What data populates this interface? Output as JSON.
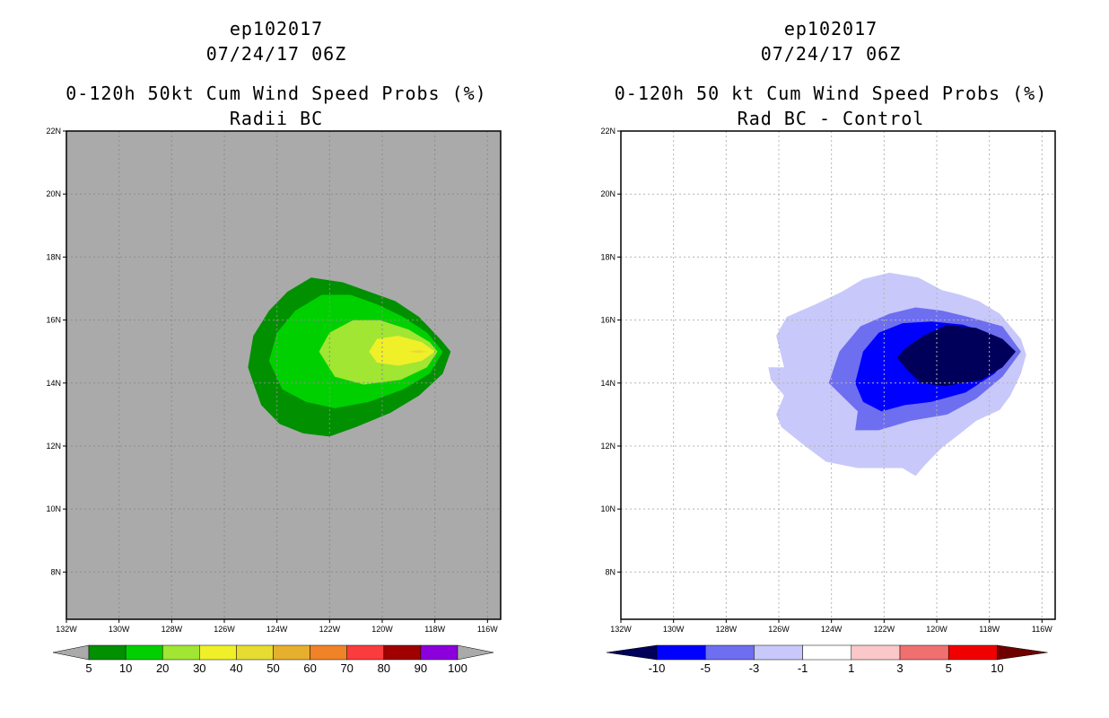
{
  "chart_data": [
    {
      "type": "contour",
      "storm_id": "ep102017",
      "datetime": "07/24/17 06Z",
      "title": "0-120h 50kt Cum Wind Speed Probs (%)",
      "subtitle": "Radii BC",
      "x_ticks": [
        "132W",
        "130W",
        "128W",
        "126W",
        "124W",
        "122W",
        "120W",
        "118W",
        "116W"
      ],
      "y_ticks": [
        "8N",
        "10N",
        "12N",
        "14N",
        "16N",
        "18N",
        "20N",
        "22N"
      ],
      "xlim": [
        -132,
        -115.5
      ],
      "ylim": [
        6.5,
        22
      ],
      "background_color": "#aaaaaa",
      "colorbar_labels": [
        "5",
        "10",
        "20",
        "30",
        "40",
        "50",
        "60",
        "70",
        "80",
        "90",
        "100"
      ],
      "colorbar_colors": [
        "#009000",
        "#00d000",
        "#a0e632",
        "#f0f028",
        "#e6dc32",
        "#e6af2d",
        "#f08228",
        "#fa3c3c",
        "#a00000",
        "#8c00dc"
      ],
      "contours": [
        {
          "level": 5,
          "color": "#009000",
          "points": [
            [
              -125.1,
              14.5
            ],
            [
              -124.9,
              15.5
            ],
            [
              -124.3,
              16.3
            ],
            [
              -123.6,
              16.9
            ],
            [
              -122.7,
              17.35
            ],
            [
              -121.5,
              17.2
            ],
            [
              -120.5,
              16.9
            ],
            [
              -119.5,
              16.6
            ],
            [
              -118.6,
              16.1
            ],
            [
              -117.8,
              15.4
            ],
            [
              -117.4,
              15.0
            ],
            [
              -117.7,
              14.3
            ],
            [
              -118.6,
              13.6
            ],
            [
              -119.7,
              13.05
            ],
            [
              -121.0,
              12.6
            ],
            [
              -122.0,
              12.3
            ],
            [
              -123.0,
              12.4
            ],
            [
              -123.9,
              12.7
            ],
            [
              -124.6,
              13.3
            ],
            [
              -124.9,
              14.0
            ]
          ]
        },
        {
          "level": 10,
          "color": "#00d000",
          "points": [
            [
              -124.3,
              14.7
            ],
            [
              -124.0,
              15.6
            ],
            [
              -123.3,
              16.3
            ],
            [
              -122.3,
              16.8
            ],
            [
              -121.2,
              16.8
            ],
            [
              -120.2,
              16.5
            ],
            [
              -119.2,
              16.1
            ],
            [
              -118.3,
              15.6
            ],
            [
              -117.7,
              15.0
            ],
            [
              -118.2,
              14.3
            ],
            [
              -119.2,
              13.8
            ],
            [
              -120.5,
              13.4
            ],
            [
              -121.8,
              13.2
            ],
            [
              -122.9,
              13.4
            ],
            [
              -123.8,
              13.8
            ]
          ]
        },
        {
          "level": 20,
          "color": "#a0e632",
          "points": [
            [
              -122.4,
              15.0
            ],
            [
              -122.0,
              15.6
            ],
            [
              -121.1,
              16.0
            ],
            [
              -120.1,
              16.0
            ],
            [
              -119.0,
              15.7
            ],
            [
              -118.2,
              15.3
            ],
            [
              -117.9,
              15.0
            ],
            [
              -118.3,
              14.5
            ],
            [
              -119.3,
              14.1
            ],
            [
              -120.7,
              13.95
            ],
            [
              -121.8,
              14.2
            ]
          ]
        },
        {
          "level": 30,
          "color": "#f0f028",
          "points": [
            [
              -120.5,
              15.0
            ],
            [
              -120.2,
              15.4
            ],
            [
              -119.4,
              15.5
            ],
            [
              -118.5,
              15.3
            ],
            [
              -118.0,
              15.0
            ],
            [
              -118.5,
              14.7
            ],
            [
              -119.4,
              14.55
            ],
            [
              -120.2,
              14.65
            ]
          ]
        },
        {
          "level": 40,
          "color": "#e6dc32",
          "points": [
            [
              -119.0,
              15.0
            ],
            [
              -118.6,
              15.05
            ],
            [
              -118.3,
              15.0
            ],
            [
              -118.6,
              14.95
            ]
          ]
        }
      ]
    },
    {
      "type": "contour",
      "storm_id": "ep102017",
      "datetime": "07/24/17 06Z",
      "title": "0-120h 50 kt Cum Wind Speed Probs (%)",
      "subtitle": "Rad BC - Control",
      "x_ticks": [
        "132W",
        "130W",
        "128W",
        "126W",
        "124W",
        "122W",
        "120W",
        "118W",
        "116W"
      ],
      "y_ticks": [
        "8N",
        "10N",
        "12N",
        "14N",
        "16N",
        "18N",
        "20N",
        "22N"
      ],
      "xlim": [
        -132,
        -115.5
      ],
      "ylim": [
        6.5,
        22
      ],
      "background_color": "#ffffff",
      "grid": true,
      "colorbar_labels": [
        "-10",
        "-5",
        "-3",
        "-1",
        "1",
        "3",
        "5",
        "10"
      ],
      "colorbar_colors": [
        "#00005a",
        "#0000ff",
        "#6e6ef0",
        "#c8c8fa",
        "#ffffff",
        "#fac8c8",
        "#f07070",
        "#f00000",
        "#6e0000"
      ],
      "contours": [
        {
          "level": -1,
          "color": "#c8c8fa",
          "points": [
            [
              -126.4,
              14.5
            ],
            [
              -125.8,
              14.5
            ],
            [
              -126.1,
              15.5
            ],
            [
              -125.7,
              16.1
            ],
            [
              -124.6,
              16.5
            ],
            [
              -123.6,
              16.9
            ],
            [
              -122.8,
              17.3
            ],
            [
              -121.8,
              17.5
            ],
            [
              -120.7,
              17.35
            ],
            [
              -119.8,
              16.95
            ],
            [
              -119.1,
              16.8
            ],
            [
              -118.4,
              16.6
            ],
            [
              -117.6,
              16.2
            ],
            [
              -116.8,
              15.4
            ],
            [
              -116.6,
              14.9
            ],
            [
              -116.8,
              14.3
            ],
            [
              -117.2,
              13.6
            ],
            [
              -117.6,
              13.15
            ],
            [
              -118.5,
              12.8
            ],
            [
              -119.1,
              12.4
            ],
            [
              -119.8,
              11.95
            ],
            [
              -120.1,
              11.7
            ],
            [
              -120.5,
              11.35
            ],
            [
              -120.8,
              11.05
            ],
            [
              -121.3,
              11.3
            ],
            [
              -122.0,
              11.3
            ],
            [
              -123.0,
              11.3
            ],
            [
              -124.2,
              11.5
            ],
            [
              -125.0,
              12.0
            ],
            [
              -125.9,
              12.6
            ],
            [
              -126.1,
              13.0
            ],
            [
              -125.8,
              13.6
            ],
            [
              -126.3,
              14.1
            ]
          ]
        },
        {
          "level": -3,
          "color": "#6e6ef0",
          "points": [
            [
              -124.1,
              14.0
            ],
            [
              -123.7,
              15.0
            ],
            [
              -122.9,
              15.8
            ],
            [
              -121.8,
              16.2
            ],
            [
              -120.8,
              16.4
            ],
            [
              -119.8,
              16.3
            ],
            [
              -118.8,
              16.1
            ],
            [
              -117.5,
              15.8
            ],
            [
              -116.8,
              15.0
            ],
            [
              -117.5,
              14.2
            ],
            [
              -118.5,
              13.5
            ],
            [
              -119.6,
              13.0
            ],
            [
              -121.0,
              12.8
            ],
            [
              -122.2,
              12.5
            ],
            [
              -123.1,
              12.5
            ],
            [
              -123.0,
              13.1
            ]
          ]
        },
        {
          "level": -5,
          "color": "#0000ff",
          "points": [
            [
              -123.1,
              14.0
            ],
            [
              -122.8,
              15.0
            ],
            [
              -122.2,
              15.6
            ],
            [
              -121.3,
              15.9
            ],
            [
              -120.2,
              15.95
            ],
            [
              -119.0,
              15.85
            ],
            [
              -117.8,
              15.5
            ],
            [
              -117.1,
              15.0
            ],
            [
              -117.8,
              14.3
            ],
            [
              -118.9,
              13.7
            ],
            [
              -120.2,
              13.4
            ],
            [
              -121.2,
              13.3
            ],
            [
              -122.1,
              13.1
            ],
            [
              -122.8,
              13.4
            ]
          ]
        },
        {
          "level": -10,
          "color": "#00005a",
          "points": [
            [
              -121.5,
              14.8
            ],
            [
              -121.2,
              15.1
            ],
            [
              -120.5,
              15.5
            ],
            [
              -119.6,
              15.85
            ],
            [
              -118.5,
              15.75
            ],
            [
              -117.5,
              15.4
            ],
            [
              -117.0,
              15.0
            ],
            [
              -117.5,
              14.5
            ],
            [
              -118.3,
              14.1
            ],
            [
              -119.7,
              13.9
            ],
            [
              -120.6,
              14.0
            ],
            [
              -121.1,
              14.4
            ]
          ]
        }
      ]
    }
  ]
}
